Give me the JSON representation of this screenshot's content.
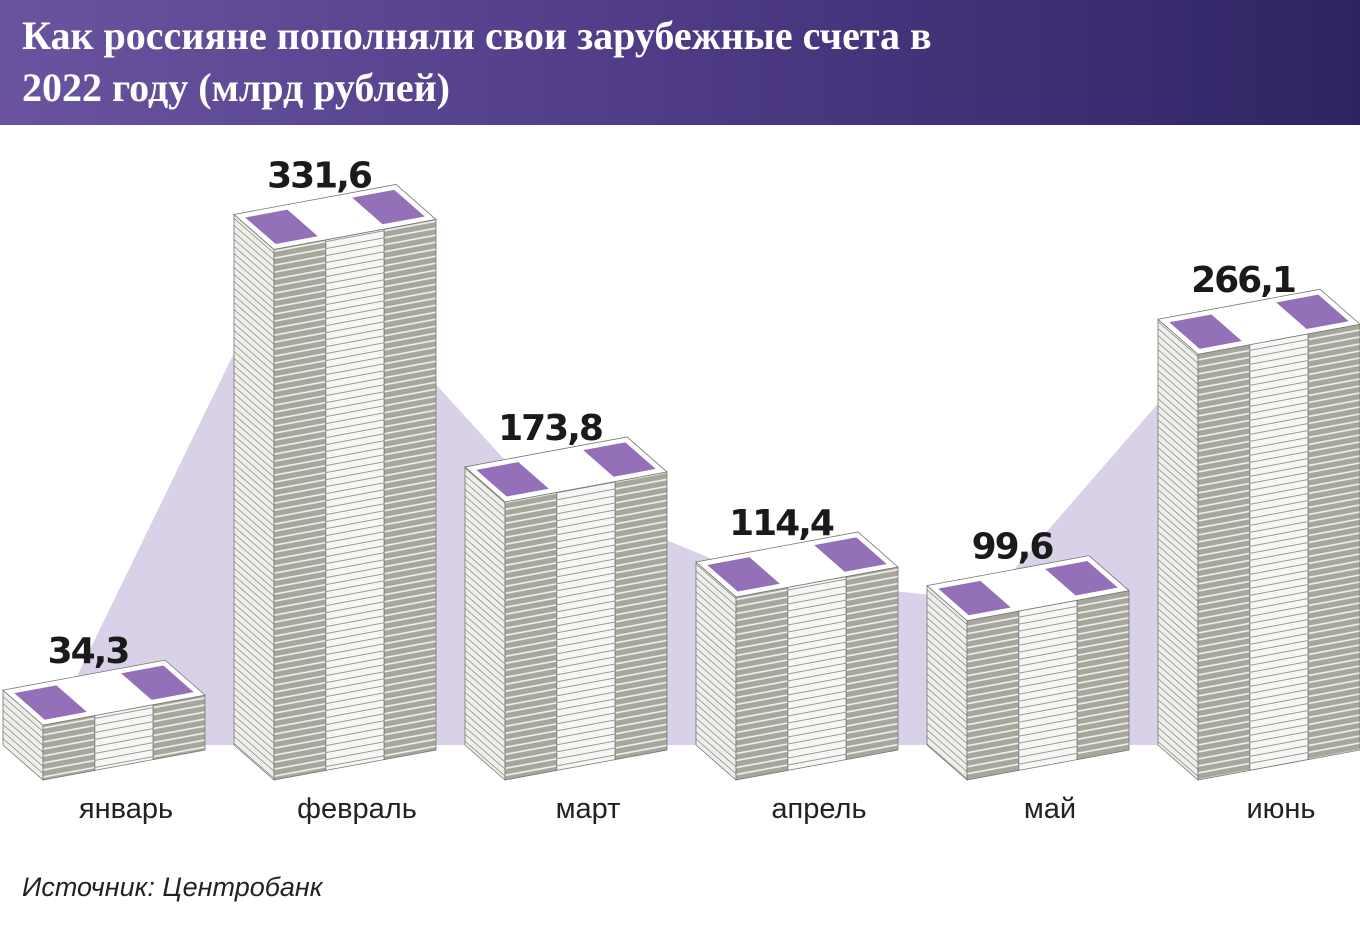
{
  "chart_data": {
    "type": "bar",
    "title": "Как россияне пополняли свои зарубежные счета в 2022 году (млрд рублей)",
    "categories": [
      "январь",
      "февраль",
      "март",
      "апрель",
      "май",
      "июнь"
    ],
    "values": [
      34.3,
      331.6,
      173.8,
      114.4,
      99.6,
      266.1
    ],
    "value_labels": [
      "34,3",
      "331,6",
      "173,8",
      "114,4",
      "99,6",
      "266,1"
    ],
    "color": "#9370b8",
    "source": "Источник: Центробанк"
  }
}
